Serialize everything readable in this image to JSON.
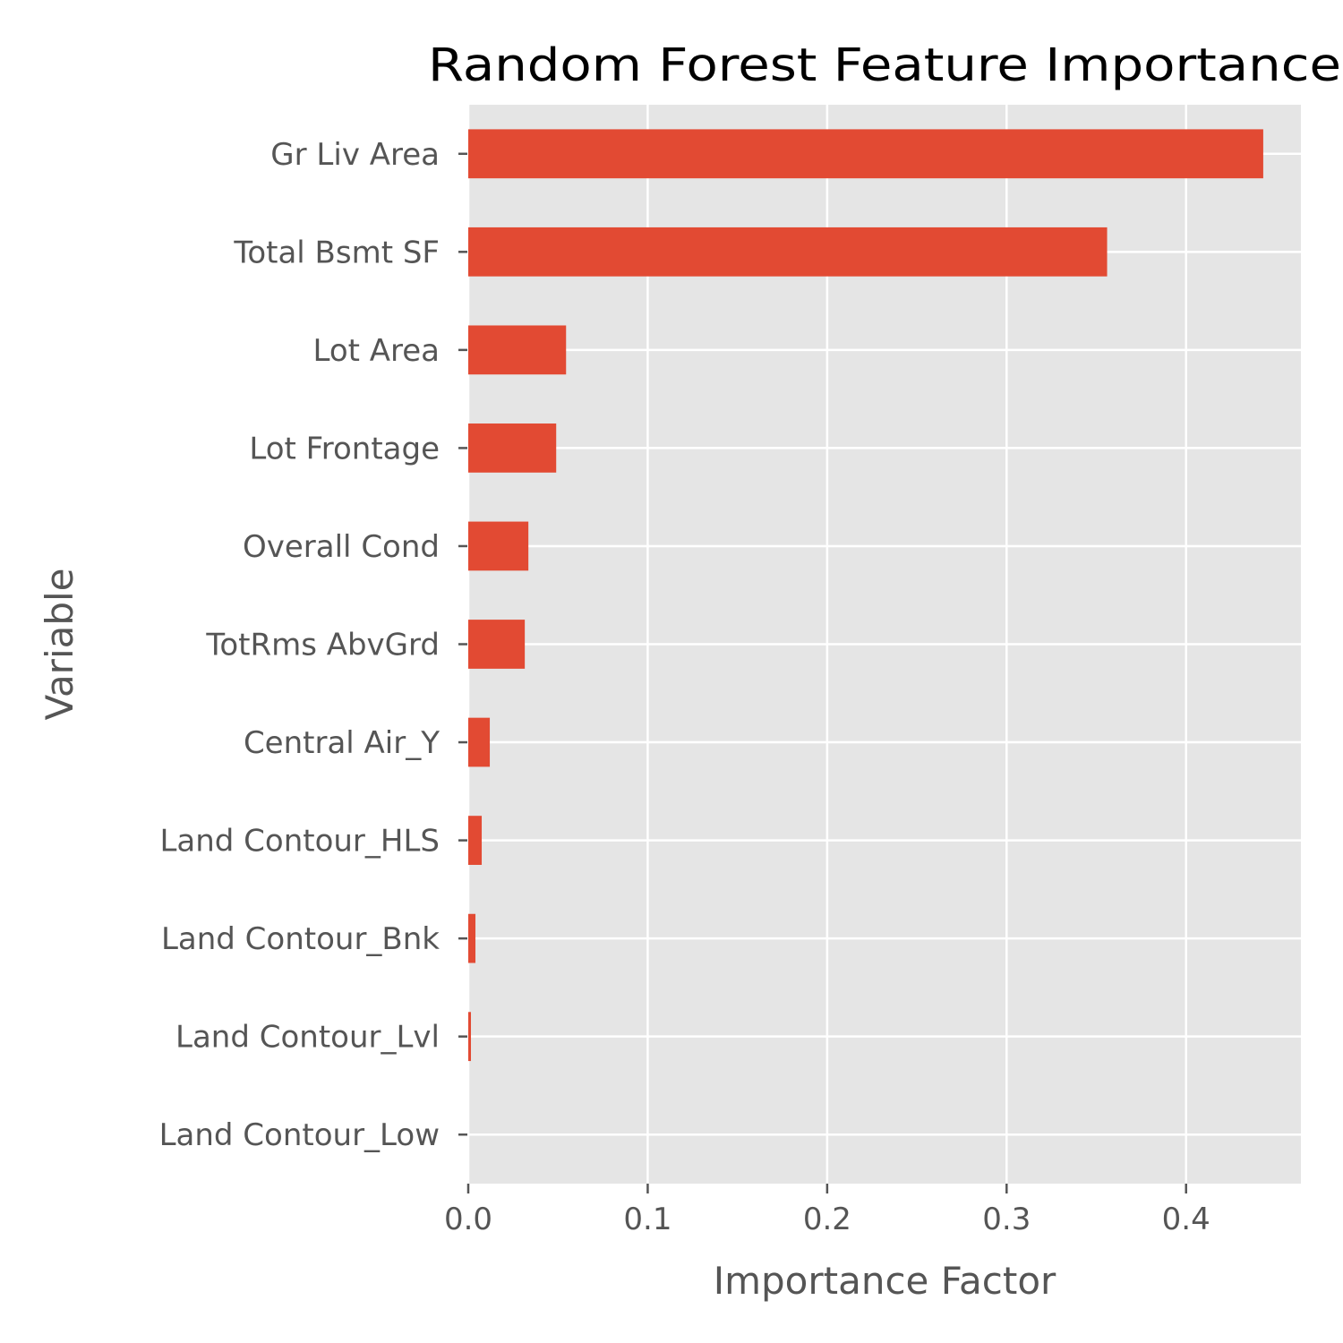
{
  "chart_data": {
    "type": "bar",
    "orientation": "horizontal",
    "title": "Random Forest Feature Importance",
    "xlabel": "Importance Factor",
    "ylabel": "Variable",
    "categories": [
      "Gr Liv Area",
      "Total Bsmt SF",
      "Lot Area",
      "Lot Frontage",
      "Overall Cond",
      "TotRms AbvGrd",
      "Central Air_Y",
      "Land Contour_HLS",
      "Land Contour_Bnk",
      "Land Contour_Lvl",
      "Land Contour_Low"
    ],
    "values": [
      0.443,
      0.356,
      0.0545,
      0.049,
      0.0335,
      0.0315,
      0.012,
      0.0075,
      0.004,
      0.0015,
      0.0
    ],
    "xlim": [
      0,
      0.464
    ],
    "xticks": [
      0.0,
      0.1,
      0.2,
      0.3,
      0.4
    ],
    "xtick_labels": [
      "0.0",
      "0.1",
      "0.2",
      "0.3",
      "0.4"
    ],
    "grid": true,
    "legend": "none",
    "colors": {
      "bar": "#E24A33",
      "plot_background": "#E5E5E5",
      "grid": "#FFFFFF",
      "tick_text": "#555555",
      "title_text": "#000000"
    }
  }
}
